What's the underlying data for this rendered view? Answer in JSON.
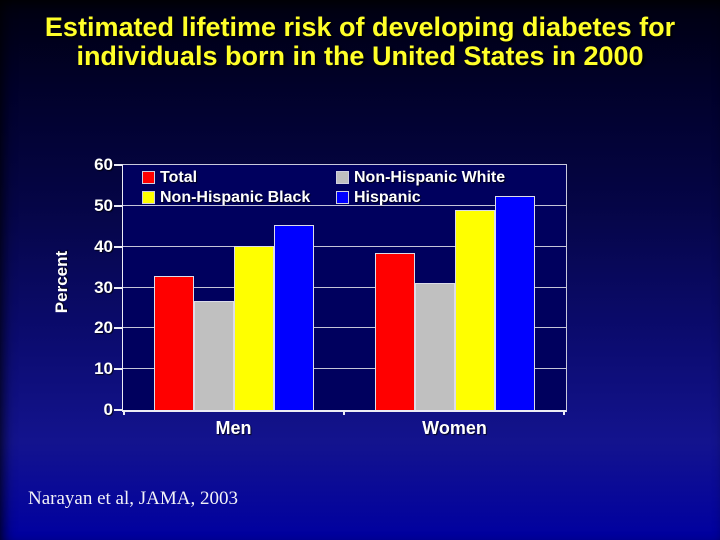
{
  "slide": {
    "title_lines": [
      "Estimated lifetime risk of developing diabetes for",
      "individuals born in the United States in 2000"
    ],
    "title_color": "#ffff29",
    "citation": "Narayan et al, JAMA, 2003",
    "background_top_color": "#000010",
    "background_bottom_color": "#0000a0"
  },
  "chart_data": {
    "type": "bar",
    "title": "",
    "xlabel": "",
    "ylabel": "Percent",
    "ylim": [
      0,
      60
    ],
    "ytick_step": 10,
    "grid": true,
    "legend_position": "top-inside",
    "plot_background": "#00005e",
    "categories": [
      "Men",
      "Women"
    ],
    "series": [
      {
        "name": "Total",
        "color": "#ff0000",
        "values": [
          32.8,
          38.5
        ]
      },
      {
        "name": "Non-Hispanic White",
        "color": "#c0c0c0",
        "values": [
          26.7,
          31.2
        ]
      },
      {
        "name": "Non-Hispanic Black",
        "color": "#ffff00",
        "values": [
          40.2,
          49.0
        ]
      },
      {
        "name": "Hispanic",
        "color": "#0000ff",
        "values": [
          45.4,
          52.5
        ]
      }
    ]
  }
}
